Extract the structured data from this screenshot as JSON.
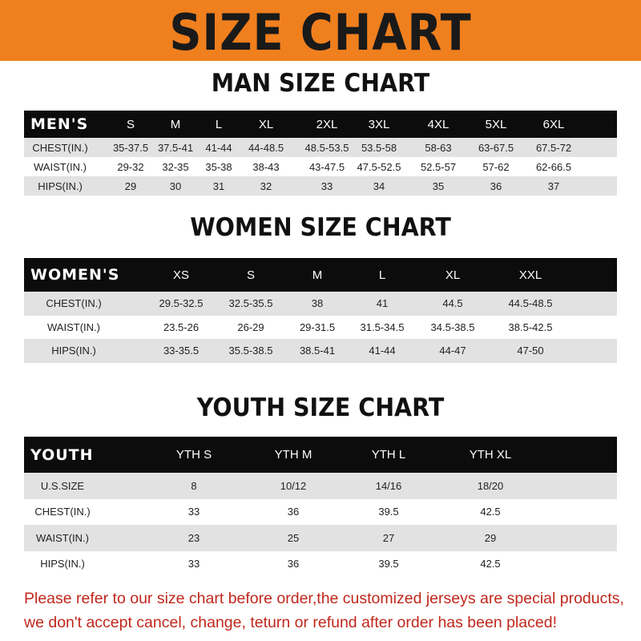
{
  "banner": {
    "title": "SIZE CHART",
    "color": "#f07f1e"
  },
  "men": {
    "title": "MAN SIZE CHART",
    "header": [
      "MEN'S",
      "S",
      "M",
      "L",
      "XL",
      "2XL",
      "3XL",
      "4XL",
      "5XL",
      "6XL"
    ],
    "rows": [
      [
        "CHEST(IN.)",
        "35-37.5",
        "37.5-41",
        "41-44",
        "44-48.5",
        "48.5-53.5",
        "53.5-58",
        "58-63",
        "63-67.5",
        "67.5-72"
      ],
      [
        "WAIST(IN.)",
        "29-32",
        "32-35",
        "35-38",
        "38-43",
        "43-47.5",
        "47.5-52.5",
        "52.5-57",
        "57-62",
        "62-66.5"
      ],
      [
        "HIPS(IN.)",
        "29",
        "30",
        "31",
        "32",
        "33",
        "34",
        "35",
        "36",
        "37"
      ]
    ]
  },
  "women": {
    "title": "WOMEN SIZE CHART",
    "header": [
      "WOMEN'S",
      "XS",
      "S",
      "M",
      "L",
      "XL",
      "XXL"
    ],
    "rows": [
      [
        "CHEST(IN.)",
        "29.5-32.5",
        "32.5-35.5",
        "38",
        "41",
        "44.5",
        "44.5-48.5"
      ],
      [
        "WAIST(IN.)",
        "23.5-26",
        "26-29",
        "29-31.5",
        "31.5-34.5",
        "34.5-38.5",
        "38.5-42.5"
      ],
      [
        "HIPS(IN.)",
        "33-35.5",
        "35.5-38.5",
        "38.5-41",
        "41-44",
        "44-47",
        "47-50"
      ]
    ]
  },
  "youth": {
    "title": "YOUTH SIZE CHART",
    "header": [
      "YOUTH",
      "YTH S",
      "YTH M",
      "YTH L",
      "YTH XL"
    ],
    "rows": [
      [
        "U.S.SIZE",
        "8",
        "10/12",
        "14/16",
        "18/20"
      ],
      [
        "CHEST(IN.)",
        "33",
        "36",
        "39.5",
        "42.5"
      ],
      [
        "WAIST(IN.)",
        "23",
        "25",
        "27",
        "29"
      ],
      [
        "HIPS(IN.)",
        "33",
        "36",
        "39.5",
        "42.5"
      ]
    ]
  },
  "footer": {
    "line1": "Please refer to our size chart before order,the customized jerseys are special products,",
    "line2": "we don't accept cancel, change, teturn or refund after order has been placed!",
    "color": "#c0281c"
  }
}
